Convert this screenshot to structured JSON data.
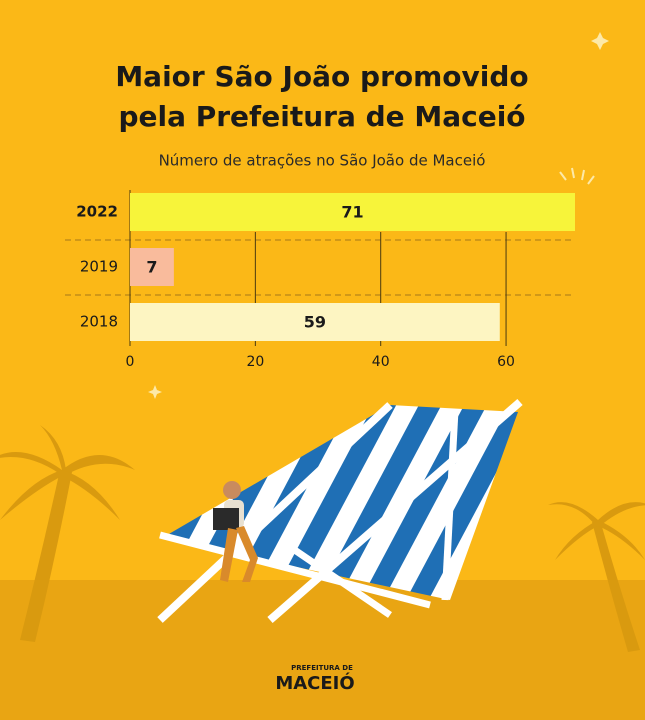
{
  "chart_data": {
    "type": "hbar",
    "title": [
      "Maior São João promovido",
      "pela Prefeitura de Maceió"
    ],
    "subtitle": "Número de atrações no São João de Maceió",
    "categories": [
      "2022",
      "2019",
      "2018"
    ],
    "values": [
      71,
      7,
      59
    ],
    "colors": [
      "#f7f43a",
      "#f9bb9c",
      "#fdf5c2"
    ],
    "xlim": [
      0,
      71
    ],
    "xticks": [
      0,
      20,
      40,
      60
    ],
    "grid": true
  },
  "logo": {
    "line1": "PREFEITURA DE",
    "line2": "MACEIÓ"
  }
}
